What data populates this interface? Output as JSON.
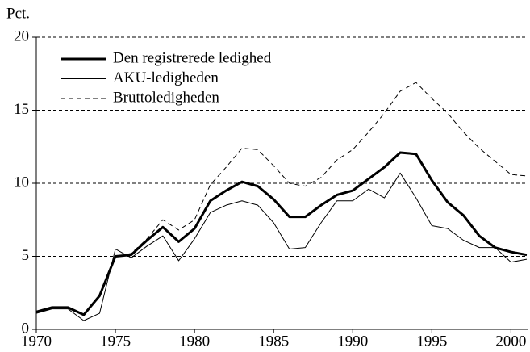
{
  "chart_data": {
    "type": "line",
    "y_label": "Pct.",
    "x": [
      1970,
      1971,
      1972,
      1973,
      1974,
      1975,
      1976,
      1977,
      1978,
      1979,
      1980,
      1981,
      1982,
      1983,
      1984,
      1985,
      1986,
      1987,
      1988,
      1989,
      1990,
      1991,
      1992,
      1993,
      1994,
      1995,
      1996,
      1997,
      1998,
      1999,
      2000,
      2001
    ],
    "xlim": [
      1970,
      2001
    ],
    "xticks": [
      1970,
      1975,
      1980,
      1985,
      1990,
      1995,
      2000
    ],
    "ylim": [
      0,
      20
    ],
    "yticks": [
      0,
      5,
      10,
      15,
      20
    ],
    "grid": true,
    "legend": "upper left",
    "series": [
      {
        "name": "Den registrerede ledighed",
        "color": "#000000",
        "width": 3,
        "dash": false,
        "values": [
          1.2,
          1.5,
          1.5,
          1.0,
          2.3,
          5.0,
          5.1,
          6.1,
          7.0,
          6.0,
          6.9,
          8.8,
          9.5,
          10.1,
          9.8,
          8.9,
          7.7,
          7.7,
          8.5,
          9.2,
          9.5,
          10.3,
          11.1,
          12.1,
          12.0,
          10.2,
          8.7,
          7.8,
          6.4,
          5.6,
          5.3,
          5.1
        ]
      },
      {
        "name": "AKU-ledigheden",
        "color": "#000000",
        "width": 1,
        "dash": false,
        "values": [
          1.1,
          1.4,
          1.4,
          0.6,
          1.1,
          5.5,
          4.9,
          5.7,
          6.4,
          4.7,
          6.2,
          8.0,
          8.5,
          8.8,
          8.5,
          7.3,
          5.5,
          5.6,
          7.3,
          8.8,
          8.8,
          9.6,
          9.0,
          10.7,
          9.0,
          7.1,
          6.9,
          6.1,
          5.6,
          5.6,
          4.6,
          4.8
        ]
      },
      {
        "name": "Bruttoledigheden",
        "color": "#000000",
        "width": 1,
        "dash": true,
        "values": [
          1.2,
          1.5,
          1.5,
          1.0,
          2.3,
          5.0,
          5.2,
          6.2,
          7.5,
          6.8,
          7.5,
          9.9,
          11.1,
          12.4,
          12.3,
          11.2,
          10.0,
          9.8,
          10.4,
          11.6,
          12.3,
          13.5,
          14.8,
          16.3,
          16.9,
          15.8,
          14.8,
          13.5,
          12.4,
          11.5,
          10.6,
          10.5
        ]
      }
    ]
  }
}
